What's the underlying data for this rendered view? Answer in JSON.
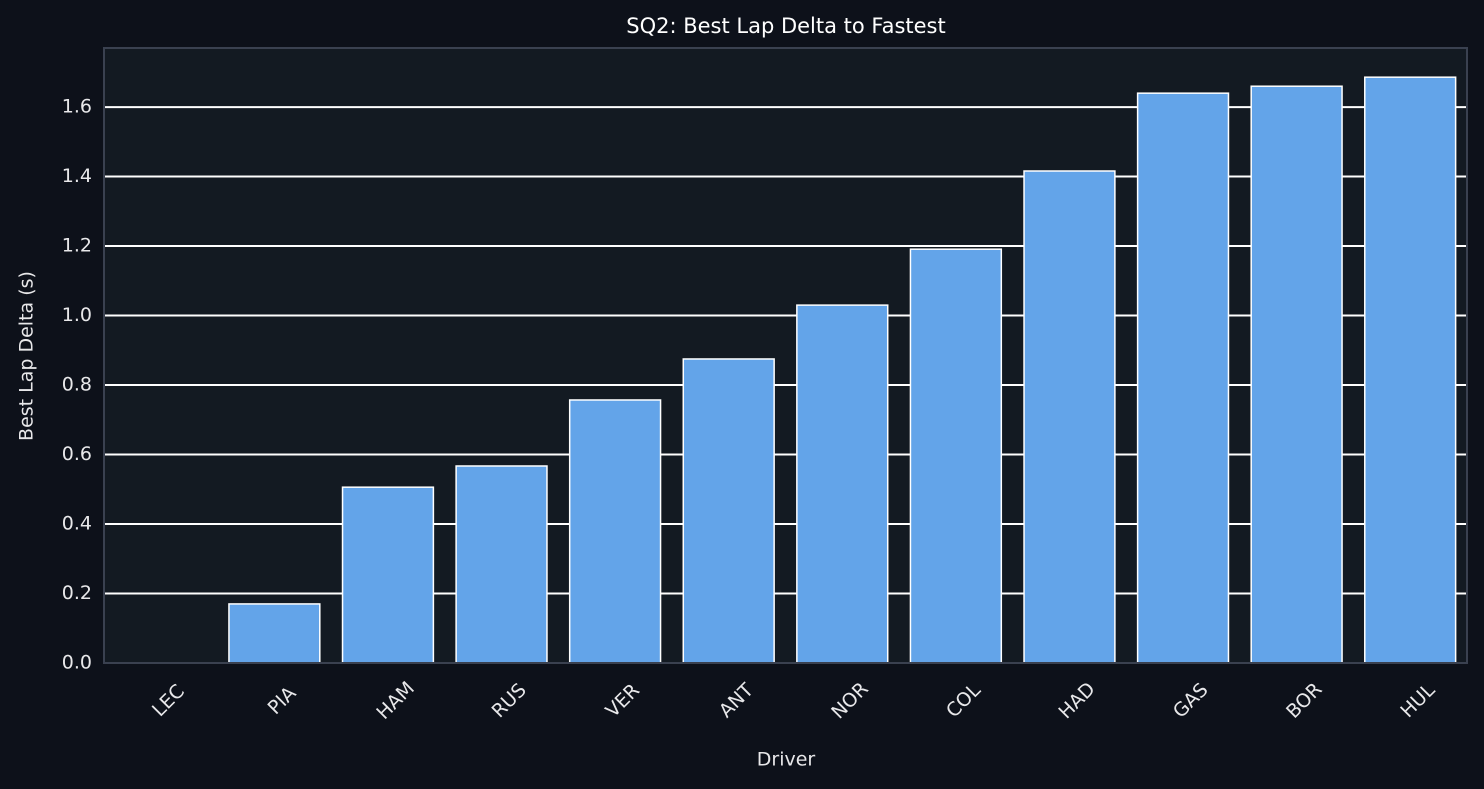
{
  "chart_data": {
    "type": "bar",
    "title": "SQ2: Best Lap Delta to Fastest",
    "x_label": "Driver",
    "y_label": "Best Lap Delta (s)",
    "categories": [
      "LEC",
      "PIA",
      "HAM",
      "RUS",
      "VER",
      "ANT",
      "NOR",
      "COL",
      "HAD",
      "GAS",
      "BOR",
      "HUL"
    ],
    "values": [
      0.0,
      0.17,
      0.506,
      0.567,
      0.757,
      0.875,
      1.03,
      1.191,
      1.416,
      1.64,
      1.66,
      1.686
    ],
    "color": "#63a4e9",
    "ylim": [
      0,
      1.77
    ],
    "yticks": [
      {
        "value": 0,
        "label": "0.0"
      },
      {
        "value": 0.2,
        "label": "0.2"
      },
      {
        "value": 0.4,
        "label": "0.4"
      },
      {
        "value": 0.6,
        "label": "0.6"
      },
      {
        "value": 0.8,
        "label": "0.8"
      },
      {
        "value": 1.0,
        "label": "1.0"
      },
      {
        "value": 1.2,
        "label": "1.2"
      },
      {
        "value": 1.4,
        "label": "1.4"
      },
      {
        "value": 1.6,
        "label": "1.6"
      }
    ],
    "grid": true
  }
}
